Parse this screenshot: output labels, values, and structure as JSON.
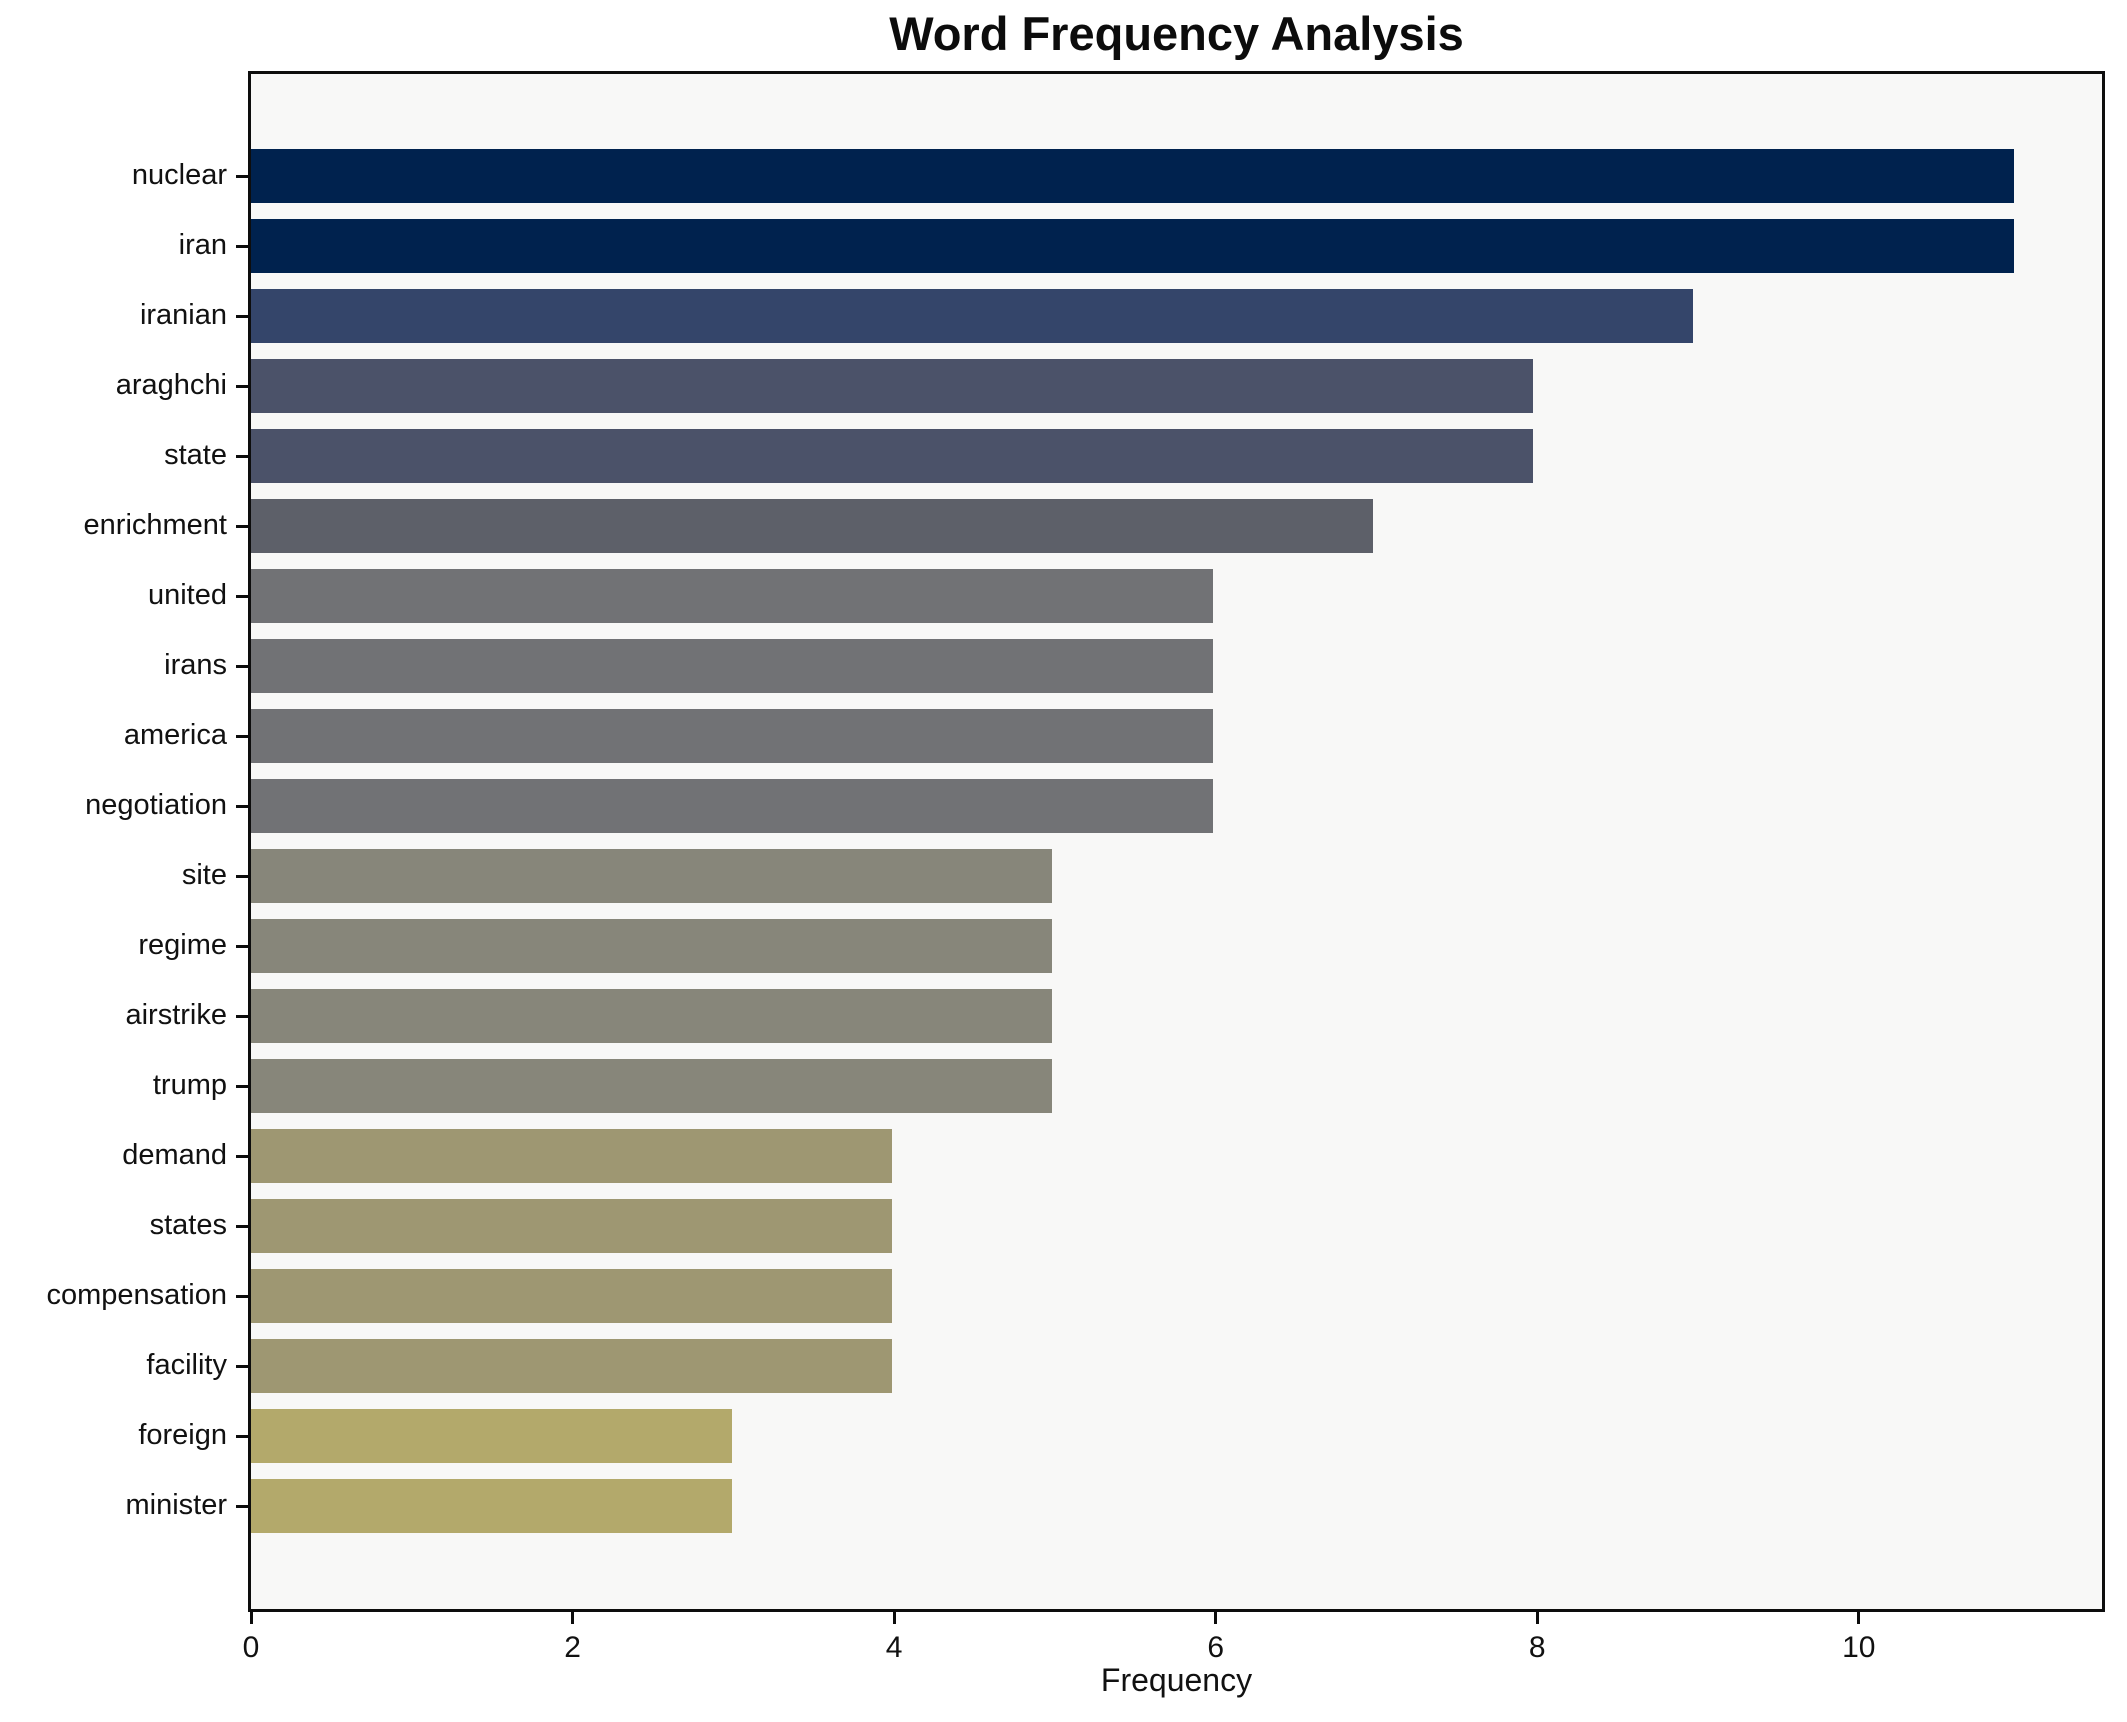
{
  "title": "Word Frequency Analysis",
  "chart_data": {
    "type": "bar",
    "orientation": "horizontal",
    "title": "Word Frequency Analysis",
    "xlabel": "Frequency",
    "ylabel": "",
    "categories": [
      "nuclear",
      "iran",
      "iranian",
      "araghchi",
      "state",
      "enrichment",
      "united",
      "irans",
      "america",
      "negotiation",
      "site",
      "regime",
      "airstrike",
      "trump",
      "demand",
      "states",
      "compensation",
      "facility",
      "foreign",
      "minister"
    ],
    "values": [
      11,
      11,
      9,
      8,
      8,
      7,
      6,
      6,
      6,
      6,
      5,
      5,
      5,
      5,
      4,
      4,
      4,
      4,
      3,
      3
    ],
    "bar_colors": [
      "#00224e",
      "#00224e",
      "#34456a",
      "#4b5269",
      "#4b5269",
      "#5d6069",
      "#717275",
      "#717275",
      "#717275",
      "#717275",
      "#87867a",
      "#87867a",
      "#87867a",
      "#87867a",
      "#9e9772",
      "#9e9772",
      "#9e9772",
      "#9e9772",
      "#b3a96b",
      "#b3a96b"
    ],
    "xlim": [
      0,
      11.55
    ],
    "x_ticks": [
      0,
      2,
      4,
      6,
      8,
      10
    ],
    "grid": false,
    "legend": "none",
    "plot_background": "#f8f8f7",
    "figure_background": "#ffffff",
    "colormap": "cividis-reversed-by-value"
  }
}
